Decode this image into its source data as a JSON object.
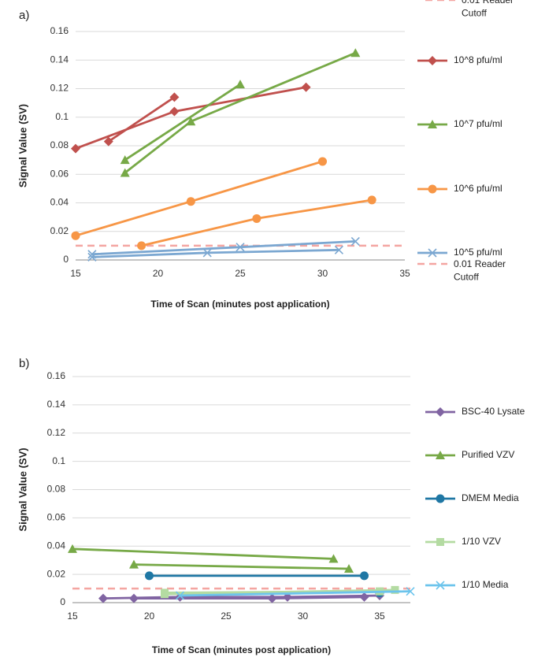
{
  "chart_data": [
    {
      "panel_label": "a)",
      "type": "line",
      "title": "",
      "xlabel": "Time of Scan (minutes post application)",
      "ylabel": "Signal Value (SV)",
      "xlim": [
        15,
        35
      ],
      "ylim": [
        0,
        0.16
      ],
      "xticks": [
        "15",
        "20",
        "25",
        "30",
        "35"
      ],
      "yticks": [
        "0",
        "0.02",
        "0.04",
        "0.06",
        "0.08",
        "0.1",
        "0.12",
        "0.14",
        "0.16"
      ],
      "grid": "horizontal",
      "legend_position": "right",
      "series": [
        {
          "name": "10^8 pfu/ml",
          "color": "#c0504d",
          "marker": "diamond",
          "lines": [
            [
              [
                15,
                0.078
              ],
              [
                21,
                0.104
              ],
              [
                29,
                0.121
              ]
            ],
            [
              [
                17,
                0.083
              ],
              [
                21,
                0.114
              ]
            ]
          ]
        },
        {
          "name": "10^7 pfu/ml",
          "color": "#77a947",
          "marker": "triangle",
          "lines": [
            [
              [
                18,
                0.07
              ],
              [
                25,
                0.123
              ]
            ],
            [
              [
                18,
                0.061
              ],
              [
                22,
                0.097
              ],
              [
                32,
                0.145
              ]
            ]
          ]
        },
        {
          "name": "10^6 pfu/ml",
          "color": "#f79646",
          "marker": "circle",
          "lines": [
            [
              [
                15,
                0.017
              ],
              [
                22,
                0.041
              ],
              [
                30,
                0.069
              ]
            ],
            [
              [
                19,
                0.01
              ],
              [
                26,
                0.029
              ],
              [
                33,
                0.042
              ]
            ]
          ]
        },
        {
          "name": "10^5 pfu/ml",
          "color": "#7ba7d1",
          "marker": "x",
          "lines": [
            [
              [
                16,
                0.004
              ],
              [
                25,
                0.009
              ],
              [
                32,
                0.013
              ]
            ],
            [
              [
                16,
                0.002
              ],
              [
                23,
                0.005
              ],
              [
                31,
                0.007
              ]
            ]
          ]
        }
      ],
      "reference_line": {
        "name": "0.01 Reader Cutoff",
        "value": 0.01,
        "color": "#f4a5a1",
        "style": "dashed"
      }
    },
    {
      "panel_label": "b)",
      "type": "line",
      "title": "",
      "xlabel": "Time of Scan (minutes post application)",
      "ylabel": "Signal Value (SV)",
      "xlim": [
        15,
        37
      ],
      "ylim": [
        0,
        0.16
      ],
      "xticks": [
        "15",
        "20",
        "25",
        "30",
        "35"
      ],
      "yticks": [
        "0",
        "0.02",
        "0.04",
        "0.06",
        "0.08",
        "0.1",
        "0.12",
        "0.14",
        "0.16"
      ],
      "grid": "horizontal",
      "legend_position": "right",
      "series": [
        {
          "name": "BSC-40 Lysate",
          "color": "#8064a2",
          "marker": "diamond",
          "lines": [
            [
              [
                17,
                0.003
              ],
              [
                22,
                0.004
              ],
              [
                29,
                0.004
              ],
              [
                35,
                0.005
              ]
            ],
            [
              [
                19,
                0.003
              ],
              [
                28,
                0.003
              ],
              [
                34,
                0.004
              ]
            ]
          ]
        },
        {
          "name": "Purified VZV",
          "color": "#77a947",
          "marker": "triangle",
          "lines": [
            [
              [
                15,
                0.038
              ],
              [
                32,
                0.031
              ]
            ],
            [
              [
                19,
                0.027
              ],
              [
                33,
                0.024
              ]
            ]
          ]
        },
        {
          "name": "DMEM Media",
          "color": "#1f77a4",
          "marker": "circle",
          "lines": [
            [
              [
                20,
                0.019
              ],
              [
                34,
                0.019
              ]
            ],
            [
              [
                35,
                0.007
              ]
            ]
          ]
        },
        {
          "name": "1/10 VZV",
          "color": "#b4dba2",
          "marker": "square",
          "lines": [
            [
              [
                21,
                0.006
              ],
              [
                36,
                0.009
              ]
            ],
            [
              [
                21,
                0.007
              ],
              [
                35,
                0.008
              ]
            ]
          ]
        },
        {
          "name": "1/10 Media",
          "color": "#6cc4ec",
          "marker": "x",
          "lines": [
            [
              [
                22,
                0.005
              ],
              [
                37,
                0.008
              ]
            ]
          ]
        }
      ],
      "reference_line": {
        "name": "0.01 Reader Cutoff",
        "value": 0.01,
        "color": "#f4a5a1",
        "style": "dashed"
      }
    }
  ]
}
